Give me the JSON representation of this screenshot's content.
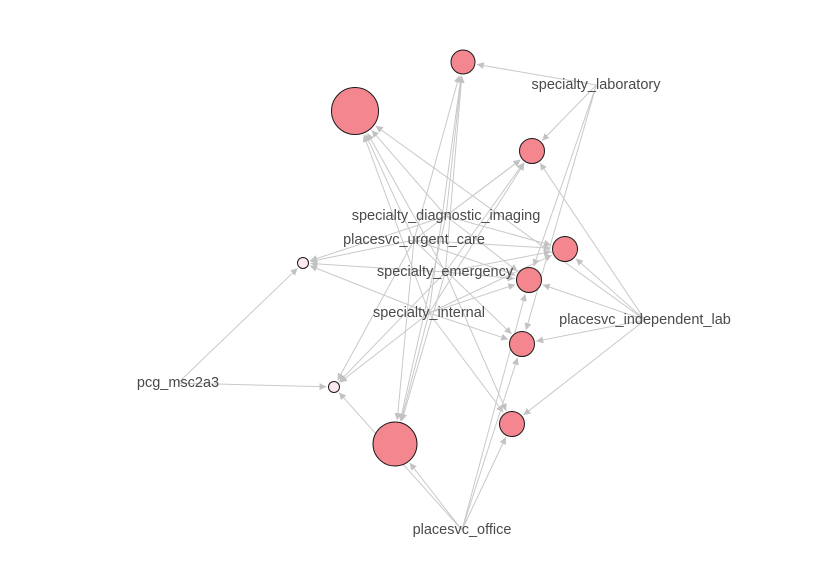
{
  "graph": {
    "labels": {
      "specialty_laboratory": "specialty_laboratory",
      "specialty_diagnostic_imaging": "specialty_diagnostic_imaging",
      "placesvc_urgent_care": "placesvc_urgent_care",
      "specialty_emergency": "specialty_emergency",
      "specialty_internal": "specialty_internal",
      "placesvc_independent_lab": "placesvc_independent_lab",
      "pcg_msc2a3": "pcg_msc2a3",
      "placesvc_office": "placesvc_office"
    },
    "colors": {
      "node_fill": "#f4868f",
      "small_node_fill": "#fde9ee",
      "edge": "#c9c9c9",
      "arrow": "#c2c2c2",
      "label": "#4a4a4a"
    },
    "edges": [
      [
        "specialty_laboratory",
        "n_top"
      ],
      [
        "specialty_laboratory",
        "n_r1"
      ],
      [
        "specialty_laboratory",
        "n_r3"
      ],
      [
        "specialty_laboratory",
        "n_r4"
      ],
      [
        "specialty_diagnostic_imaging",
        "n_big1"
      ],
      [
        "specialty_diagnostic_imaging",
        "n_top"
      ],
      [
        "specialty_diagnostic_imaging",
        "n_r1"
      ],
      [
        "specialty_diagnostic_imaging",
        "n_r2"
      ],
      [
        "specialty_diagnostic_imaging",
        "n_r3"
      ],
      [
        "specialty_diagnostic_imaging",
        "n_s1"
      ],
      [
        "specialty_diagnostic_imaging",
        "n_big2"
      ],
      [
        "placesvc_urgent_care",
        "n_big1"
      ],
      [
        "placesvc_urgent_care",
        "n_top"
      ],
      [
        "placesvc_urgent_care",
        "n_r1"
      ],
      [
        "placesvc_urgent_care",
        "n_r2"
      ],
      [
        "placesvc_urgent_care",
        "n_r3"
      ],
      [
        "placesvc_urgent_care",
        "n_r4"
      ],
      [
        "placesvc_urgent_care",
        "n_s1"
      ],
      [
        "placesvc_urgent_care",
        "n_s2"
      ],
      [
        "placesvc_urgent_care",
        "n_big2"
      ],
      [
        "specialty_emergency",
        "n_big1"
      ],
      [
        "specialty_emergency",
        "n_top"
      ],
      [
        "specialty_emergency",
        "n_r1"
      ],
      [
        "specialty_emergency",
        "n_r2"
      ],
      [
        "specialty_emergency",
        "n_r3"
      ],
      [
        "specialty_emergency",
        "n_s1"
      ],
      [
        "specialty_emergency",
        "n_s2"
      ],
      [
        "specialty_emergency",
        "n_big2"
      ],
      [
        "specialty_emergency",
        "n_r5"
      ],
      [
        "specialty_internal",
        "n_big1"
      ],
      [
        "specialty_internal",
        "n_top"
      ],
      [
        "specialty_internal",
        "n_r1"
      ],
      [
        "specialty_internal",
        "n_r2"
      ],
      [
        "specialty_internal",
        "n_r3"
      ],
      [
        "specialty_internal",
        "n_r4"
      ],
      [
        "specialty_internal",
        "n_s1"
      ],
      [
        "specialty_internal",
        "n_s2"
      ],
      [
        "specialty_internal",
        "n_big2"
      ],
      [
        "specialty_internal",
        "n_r5"
      ],
      [
        "placesvc_independent_lab",
        "n_big1"
      ],
      [
        "placesvc_independent_lab",
        "n_r1"
      ],
      [
        "placesvc_independent_lab",
        "n_r2"
      ],
      [
        "placesvc_independent_lab",
        "n_r3"
      ],
      [
        "placesvc_independent_lab",
        "n_r4"
      ],
      [
        "placesvc_independent_lab",
        "n_r5"
      ],
      [
        "pcg_msc2a3",
        "n_s1"
      ],
      [
        "pcg_msc2a3",
        "n_s2"
      ],
      [
        "placesvc_office",
        "n_big2"
      ],
      [
        "placesvc_office",
        "n_s2"
      ],
      [
        "placesvc_office",
        "n_r3"
      ],
      [
        "placesvc_office",
        "n_r4"
      ],
      [
        "placesvc_office",
        "n_r5"
      ]
    ]
  }
}
